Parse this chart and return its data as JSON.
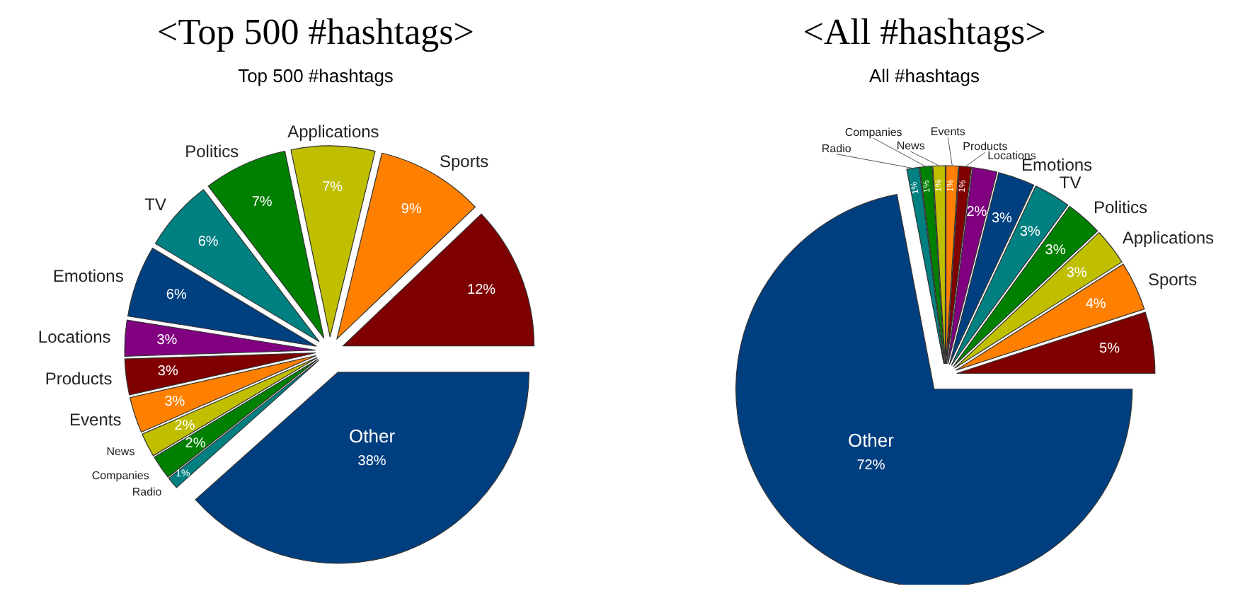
{
  "chart_data": [
    {
      "type": "pie",
      "title": "<Top 500 #hashtags>",
      "subtitle": "Top 500 #hashtags",
      "categories": [
        null,
        "Sports",
        "Applications",
        "Politics",
        "TV",
        "Emotions",
        "Locations",
        "Products",
        "Events",
        "News",
        "Companies",
        "Radio",
        "Other"
      ],
      "values": [
        12,
        9,
        7,
        7,
        6,
        6,
        3,
        3,
        3,
        2,
        2,
        1,
        38
      ],
      "value_labels": [
        "12%",
        "9%",
        "7%",
        "7%",
        "6%",
        "6%",
        "3%",
        "3%",
        "3%",
        "2%",
        "2%",
        "1%",
        "38%"
      ],
      "colors": [
        "#7f0000",
        "#ff8000",
        "#bfbf00",
        "#008000",
        "#008080",
        "#004080",
        "#800080",
        "#800000",
        "#ff8000",
        "#bfbf00",
        "#008000",
        "#008080",
        "#003f7f"
      ]
    },
    {
      "type": "pie",
      "title": "<All #hashtags>",
      "subtitle": "All #hashtags",
      "categories": [
        null,
        "Sports",
        "Applications",
        "Politics",
        "TV",
        "Emotions",
        "Locations",
        "Products",
        "Events",
        "News",
        "Companies",
        "Radio",
        "Other"
      ],
      "values": [
        5,
        4,
        3,
        3,
        3,
        3,
        2,
        1,
        1,
        1,
        1,
        1,
        72
      ],
      "value_labels": [
        "5%",
        "4%",
        "3%",
        "3%",
        "3%",
        "3%",
        "2%",
        "1%",
        "1%",
        "1%",
        "1%",
        "1%",
        "72%"
      ],
      "colors": [
        "#7f0000",
        "#ff8000",
        "#bfbf00",
        "#008000",
        "#008080",
        "#004080",
        "#800080",
        "#800000",
        "#ff8000",
        "#bfbf00",
        "#008000",
        "#008080",
        "#003f7f"
      ]
    }
  ]
}
